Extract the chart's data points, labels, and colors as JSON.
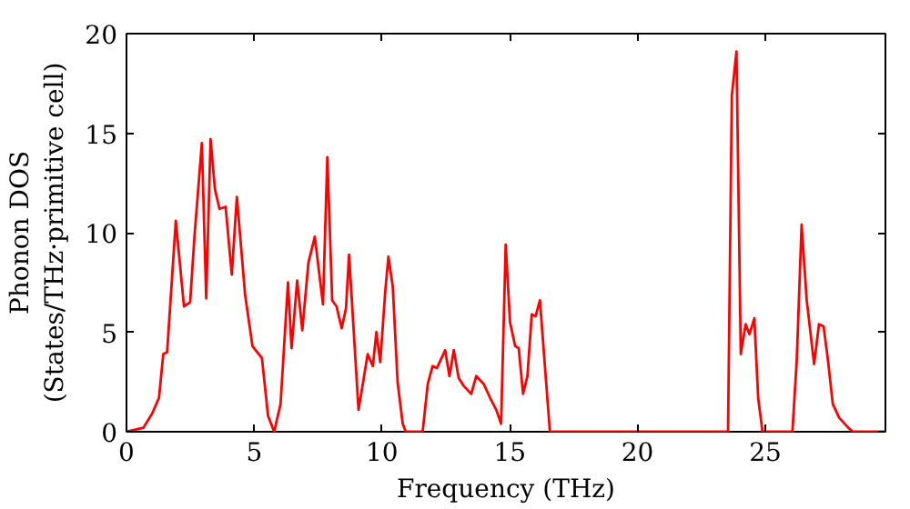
{
  "chart_data": {
    "type": "line",
    "xlabel": "Frequency (THz)",
    "ylabel": "Phonon DOS\n(States/THz·primitive cell)",
    "xlim": [
      0,
      29.7
    ],
    "ylim": [
      0,
      20
    ],
    "xticks": [
      0,
      5,
      10,
      15,
      20,
      25
    ],
    "yticks": [
      0,
      5,
      10,
      15,
      20
    ],
    "grid": false,
    "marker": "none",
    "line_style": "solid",
    "x": [
      0,
      0.66,
      1.0,
      1.27,
      1.44,
      1.59,
      1.93,
      2.25,
      2.49,
      2.66,
      2.95,
      3.12,
      3.29,
      3.46,
      3.64,
      3.88,
      4.12,
      4.32,
      4.64,
      4.93,
      5.3,
      5.54,
      5.78,
      6.03,
      6.32,
      6.46,
      6.68,
      6.88,
      7.12,
      7.37,
      7.69,
      7.86,
      8.05,
      8.22,
      8.42,
      8.59,
      8.71,
      9.08,
      9.44,
      9.64,
      9.78,
      9.93,
      10.13,
      10.25,
      10.42,
      10.61,
      10.81,
      10.93,
      11.59,
      11.79,
      11.98,
      12.15,
      12.47,
      12.64,
      12.81,
      13.0,
      13.2,
      13.49,
      13.69,
      13.98,
      14.23,
      14.47,
      14.66,
      14.84,
      15.01,
      15.21,
      15.35,
      15.52,
      15.69,
      15.86,
      16.01,
      16.18,
      16.35,
      16.57,
      23.54,
      23.69,
      23.87,
      24.04,
      24.23,
      24.38,
      24.57,
      24.72,
      24.89,
      26.06,
      26.23,
      26.42,
      26.62,
      26.91,
      27.1,
      27.28,
      27.45,
      27.64,
      27.89,
      28.25,
      28.43,
      29.7
    ],
    "series": [
      {
        "color": "#ff0000",
        "values": [
          0,
          0.2,
          0.9,
          1.7,
          3.9,
          4.0,
          10.6,
          6.3,
          6.5,
          9.8,
          14.5,
          6.7,
          14.7,
          12.2,
          11.2,
          11.3,
          7.9,
          11.8,
          6.9,
          4.3,
          3.7,
          0.8,
          0,
          1.4,
          7.5,
          4.2,
          7.6,
          5.1,
          8.5,
          9.8,
          6.4,
          13.8,
          6.6,
          6.3,
          5.2,
          6.2,
          8.9,
          1.1,
          3.9,
          3.3,
          5.0,
          3.5,
          7.1,
          8.8,
          7.3,
          2.5,
          0.4,
          0,
          0,
          2.4,
          3.3,
          3.2,
          4.1,
          2.8,
          4.1,
          2.7,
          2.3,
          1.9,
          2.8,
          2.4,
          1.7,
          1.1,
          0.4,
          9.4,
          5.5,
          4.3,
          4.2,
          1.9,
          2.8,
          5.9,
          5.8,
          6.6,
          3.7,
          0,
          0,
          16.9,
          19.1,
          3.9,
          5.4,
          4.9,
          5.7,
          1.7,
          0,
          0,
          3.6,
          10.4,
          6.6,
          3.4,
          5.4,
          5.3,
          3.6,
          1.4,
          0.7,
          0.2,
          0,
          0
        ]
      }
    ]
  }
}
